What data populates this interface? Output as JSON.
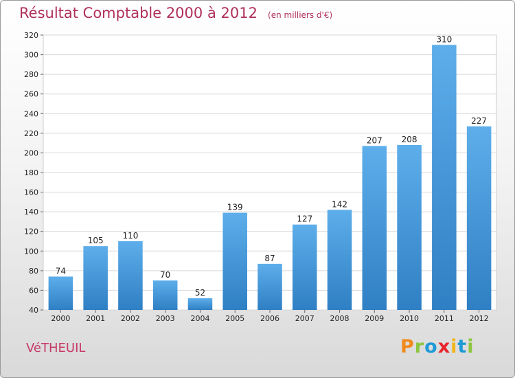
{
  "chart_data": {
    "type": "bar",
    "title": "Résultat Comptable 2000 à 2012",
    "subtitle": "(en milliers d'€)",
    "categories": [
      "2000",
      "2001",
      "2002",
      "2003",
      "2004",
      "2005",
      "2006",
      "2007",
      "2008",
      "2009",
      "2010",
      "2011",
      "2012"
    ],
    "values": [
      74,
      105,
      110,
      70,
      52,
      139,
      87,
      127,
      142,
      207,
      208,
      310,
      227
    ],
    "ylim": [
      40,
      320
    ],
    "yticks": [
      40,
      60,
      80,
      100,
      120,
      140,
      160,
      180,
      200,
      220,
      240,
      260,
      280,
      300,
      320
    ],
    "xlabel": "",
    "ylabel": "",
    "grid": true,
    "bar_color": "#4d9fdf"
  },
  "commune": "VéTHEUIL",
  "logo": {
    "text": "Proxiti",
    "letters": [
      {
        "char": "P",
        "color": "#f08a1c"
      },
      {
        "char": "r",
        "color": "#8cc63e"
      },
      {
        "char": "o",
        "color": "#1e9ad6"
      },
      {
        "char": "x",
        "color": "#e8232a"
      },
      {
        "char": "i",
        "color": "#f0b51c"
      },
      {
        "char": "t",
        "color": "#1e9ad6"
      },
      {
        "char": "i",
        "color": "#8cc63e"
      }
    ]
  }
}
